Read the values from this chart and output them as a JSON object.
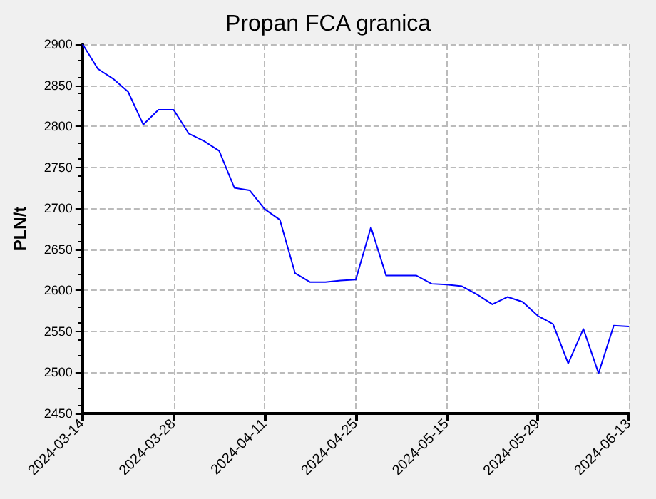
{
  "chart_data": {
    "type": "line",
    "title": "Propan FCA granica",
    "ylabel": "PLN/t",
    "categories": [
      "2024-03-14",
      null,
      null,
      null,
      null,
      null,
      "2024-03-28",
      null,
      null,
      null,
      null,
      null,
      "2024-04-11",
      null,
      null,
      null,
      null,
      null,
      "2024-04-25",
      null,
      null,
      null,
      null,
      null,
      "2024-05-15",
      null,
      null,
      null,
      null,
      null,
      "2024-05-29",
      null,
      null,
      null,
      null,
      null,
      "2024-06-13"
    ],
    "series": [
      {
        "color": "#0000ff",
        "values": [
          2900,
          2870,
          2858,
          2842,
          2802,
          2820,
          2820,
          2791,
          2782,
          2770,
          2725,
          2722,
          2699,
          2686,
          2621,
          2610,
          2610,
          2612,
          2613,
          2677,
          2618,
          2618,
          2618,
          2608,
          2607,
          2605,
          2595,
          2583,
          2592,
          2586,
          2569,
          2559,
          2511,
          2553,
          2499,
          2557,
          2556
        ]
      }
    ],
    "ylim": [
      2450,
      2900
    ],
    "yticks": [
      2450,
      2500,
      2550,
      2600,
      2650,
      2700,
      2750,
      2800,
      2850,
      2900
    ],
    "grid": true,
    "marker": "none",
    "line_style": "solid"
  }
}
